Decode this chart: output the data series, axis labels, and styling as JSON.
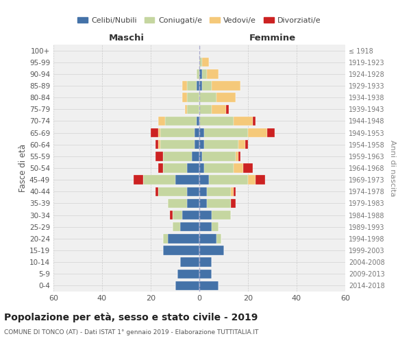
{
  "age_groups": [
    "0-4",
    "5-9",
    "10-14",
    "15-19",
    "20-24",
    "25-29",
    "30-34",
    "35-39",
    "40-44",
    "45-49",
    "50-54",
    "55-59",
    "60-64",
    "65-69",
    "70-74",
    "75-79",
    "80-84",
    "85-89",
    "90-94",
    "95-99",
    "100+"
  ],
  "birth_years": [
    "2014-2018",
    "2009-2013",
    "2004-2008",
    "1999-2003",
    "1994-1998",
    "1989-1993",
    "1984-1988",
    "1979-1983",
    "1974-1978",
    "1969-1973",
    "1964-1968",
    "1959-1963",
    "1954-1958",
    "1949-1953",
    "1944-1948",
    "1939-1943",
    "1934-1938",
    "1929-1933",
    "1924-1928",
    "1919-1923",
    "≤ 1918"
  ],
  "male": {
    "celibi": [
      10,
      9,
      8,
      15,
      13,
      8,
      7,
      5,
      5,
      10,
      5,
      3,
      2,
      2,
      1,
      0,
      0,
      1,
      0,
      0,
      0
    ],
    "coniugati": [
      0,
      0,
      0,
      0,
      2,
      3,
      4,
      8,
      12,
      13,
      10,
      12,
      14,
      14,
      13,
      5,
      5,
      4,
      1,
      0,
      0
    ],
    "vedovi": [
      0,
      0,
      0,
      0,
      0,
      0,
      0,
      0,
      0,
      0,
      0,
      0,
      1,
      1,
      3,
      1,
      2,
      2,
      0,
      0,
      0
    ],
    "divorziati": [
      0,
      0,
      0,
      0,
      0,
      0,
      1,
      0,
      1,
      4,
      2,
      3,
      1,
      3,
      0,
      0,
      0,
      0,
      0,
      0,
      0
    ]
  },
  "female": {
    "nubili": [
      8,
      5,
      5,
      10,
      7,
      5,
      5,
      3,
      3,
      4,
      2,
      1,
      2,
      2,
      0,
      0,
      0,
      1,
      1,
      0,
      0
    ],
    "coniugate": [
      0,
      0,
      0,
      0,
      2,
      3,
      8,
      10,
      10,
      16,
      12,
      14,
      14,
      18,
      14,
      5,
      7,
      4,
      2,
      1,
      0
    ],
    "vedove": [
      0,
      0,
      0,
      0,
      0,
      0,
      0,
      0,
      1,
      3,
      4,
      1,
      3,
      8,
      8,
      6,
      8,
      12,
      5,
      3,
      0
    ],
    "divorziate": [
      0,
      0,
      0,
      0,
      0,
      0,
      0,
      2,
      1,
      4,
      4,
      1,
      1,
      3,
      1,
      1,
      0,
      0,
      0,
      0,
      0
    ]
  },
  "colors": {
    "celibi": "#4472a8",
    "coniugati": "#c5d6a0",
    "vedovi": "#f5c97a",
    "divorziati": "#cc2222"
  },
  "xlim": 60,
  "title": "Popolazione per età, sesso e stato civile - 2019",
  "subtitle": "COMUNE DI TONCO (AT) - Dati ISTAT 1° gennaio 2019 - Elaborazione TUTTITALIA.IT",
  "ylabel_left": "Fasce di età",
  "ylabel_right": "Anni di nascita",
  "xlabel_left": "Maschi",
  "xlabel_right": "Femmine",
  "bg_color": "#f0f0f0",
  "grid_color": "#cccccc"
}
